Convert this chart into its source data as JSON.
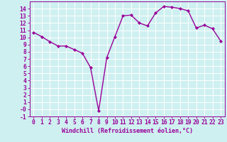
{
  "x": [
    0,
    1,
    2,
    3,
    4,
    5,
    6,
    7,
    8,
    9,
    10,
    11,
    12,
    13,
    14,
    15,
    16,
    17,
    18,
    19,
    20,
    21,
    22,
    23
  ],
  "y": [
    10.7,
    10.1,
    9.4,
    8.8,
    8.8,
    8.3,
    7.8,
    5.8,
    -0.2,
    7.2,
    10.1,
    13.0,
    13.1,
    12.0,
    11.6,
    13.4,
    14.3,
    14.2,
    14.0,
    13.7,
    11.3,
    11.7,
    11.2,
    9.5
  ],
  "line_color": "#990099",
  "marker": "D",
  "markersize": 2.2,
  "linewidth": 1.0,
  "xlabel": "Windchill (Refroidissement éolien,°C)",
  "xlim": [
    -0.5,
    23.5
  ],
  "ylim": [
    -1,
    15
  ],
  "yticks": [
    -1,
    0,
    1,
    2,
    3,
    4,
    5,
    6,
    7,
    8,
    9,
    10,
    11,
    12,
    13,
    14
  ],
  "xticks": [
    0,
    1,
    2,
    3,
    4,
    5,
    6,
    7,
    8,
    9,
    10,
    11,
    12,
    13,
    14,
    15,
    16,
    17,
    18,
    19,
    20,
    21,
    22,
    23
  ],
  "bg_color": "#cff0f0",
  "grid_color": "#ffffff",
  "tick_color": "#990099",
  "label_color": "#990099",
  "xlabel_fontsize": 6.0,
  "tick_fontsize": 5.8,
  "xlabel_fontweight": "bold"
}
